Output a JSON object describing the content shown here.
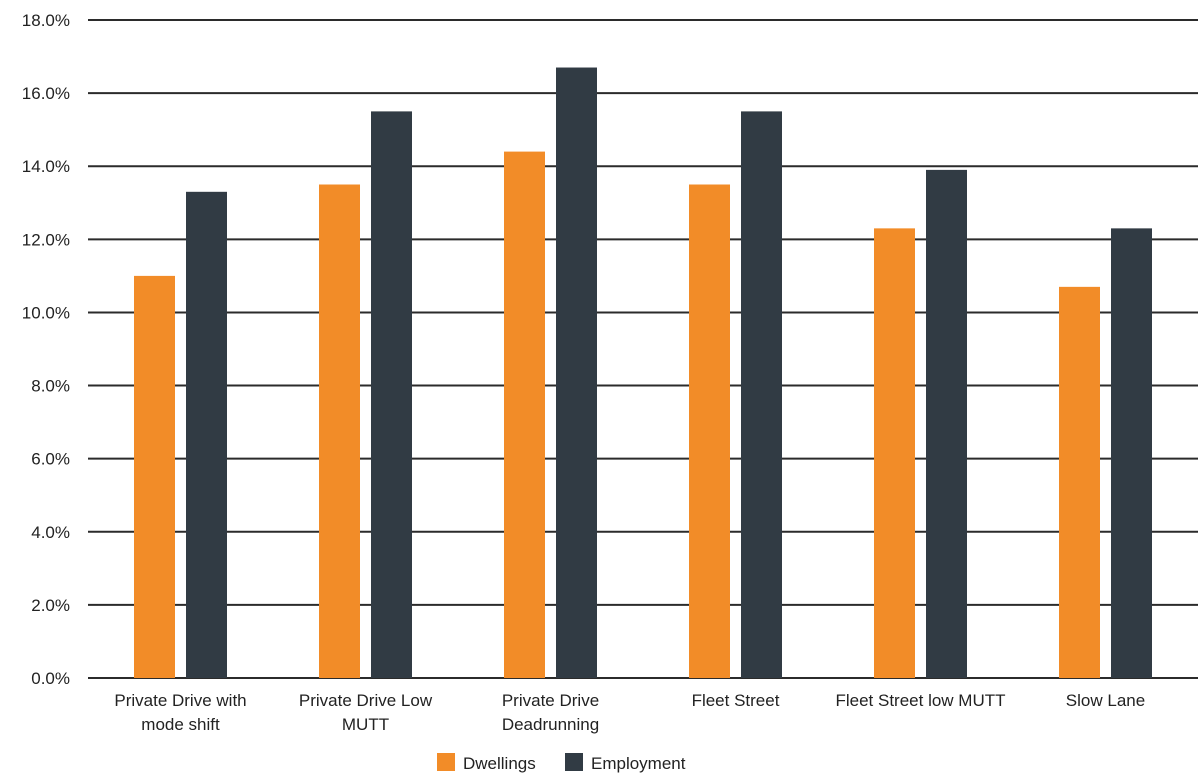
{
  "chart_data": {
    "type": "bar",
    "categories": [
      [
        "Private Drive with",
        "mode shift"
      ],
      [
        "Private Drive Low",
        "MUTT"
      ],
      [
        "Private Drive",
        "Deadrunning"
      ],
      [
        "Fleet Street"
      ],
      [
        "Fleet Street low MUTT"
      ],
      [
        "Slow Lane"
      ]
    ],
    "series": [
      {
        "name": "Dwellings",
        "color": "#F28C28",
        "values": [
          11.0,
          13.5,
          14.4,
          13.5,
          12.3,
          10.7
        ]
      },
      {
        "name": "Employment",
        "color": "#313B44",
        "values": [
          13.3,
          15.5,
          16.7,
          15.5,
          13.9,
          12.3
        ]
      }
    ],
    "ylim": [
      0,
      18
    ],
    "yticks": [
      "0.0%",
      "2.0%",
      "4.0%",
      "6.0%",
      "8.0%",
      "10.0%",
      "12.0%",
      "14.0%",
      "16.0%",
      "18.0%"
    ],
    "grid": true,
    "legend_position": "bottom-center",
    "gridline_color": "#2B2B2B"
  }
}
